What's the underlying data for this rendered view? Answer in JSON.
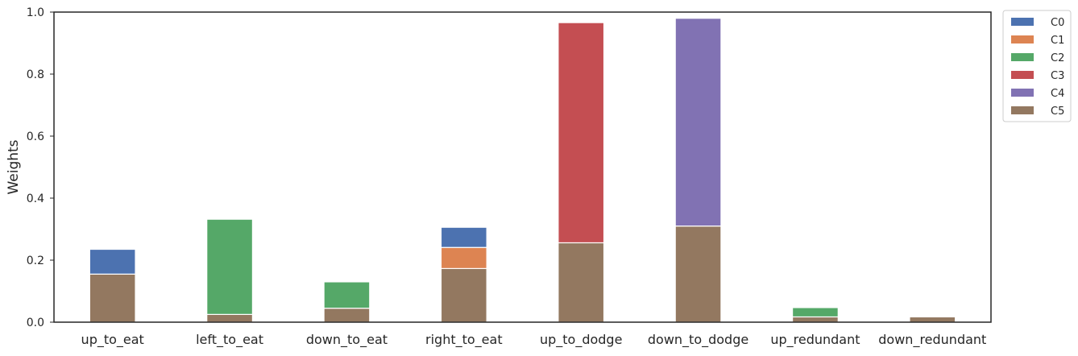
{
  "chart_data": {
    "type": "bar",
    "stacked": true,
    "ylabel": "Weights",
    "xlabel": "",
    "ylim": [
      0,
      1
    ],
    "yticks": [
      0.0,
      0.2,
      0.4,
      0.6,
      0.8,
      1.0
    ],
    "grid": false,
    "legend_position": "outside top-right",
    "categories": [
      "up_to_eat",
      "left_to_eat",
      "down_to_eat",
      "right_to_eat",
      "up_to_dodge",
      "down_to_dodge",
      "up_redundant",
      "down_redundant"
    ],
    "series": [
      {
        "name": "C0",
        "color": "#4c72b0",
        "values": [
          0.08,
          0.0,
          0.0,
          0.065,
          0.0,
          0.0,
          0.0,
          0.0
        ]
      },
      {
        "name": "C1",
        "color": "#dd8452",
        "values": [
          0.0,
          0.0,
          0.0,
          0.068,
          0.0,
          0.0,
          0.0,
          0.0
        ]
      },
      {
        "name": "C2",
        "color": "#55a868",
        "values": [
          0.0,
          0.307,
          0.085,
          0.0,
          0.0,
          0.0,
          0.03,
          0.0
        ]
      },
      {
        "name": "C3",
        "color": "#c44e52",
        "values": [
          0.0,
          0.0,
          0.0,
          0.0,
          0.71,
          0.0,
          0.0,
          0.0
        ]
      },
      {
        "name": "C4",
        "color": "#8172b3",
        "values": [
          0.0,
          0.0,
          0.0,
          0.0,
          0.0,
          0.67,
          0.0,
          0.0
        ]
      },
      {
        "name": "C5",
        "color": "#937860",
        "values": [
          0.155,
          0.025,
          0.045,
          0.173,
          0.256,
          0.31,
          0.017,
          0.017
        ]
      }
    ],
    "stack_order_bottom_to_top": [
      "C5",
      "C2",
      "C1",
      "C0",
      "C3",
      "C4"
    ]
  }
}
